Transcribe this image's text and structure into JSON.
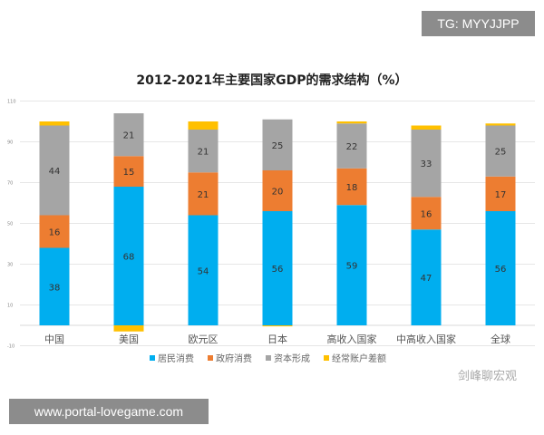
{
  "watermark_top": "TG: MYYJJPP",
  "watermark_bottom": "www.portal-lovegame.com",
  "watermark_wechat": "剑峰聊宏观",
  "chart_data": {
    "type": "bar",
    "stacked": true,
    "title": "2012-2021年主要国家GDP的需求结构（%）",
    "categories": [
      "中国",
      "美国",
      "欧元区",
      "日本",
      "高收入国家",
      "中高收入国家",
      "全球"
    ],
    "series": [
      {
        "name": "居民消费",
        "color": "#00aeef",
        "values": [
          38,
          68,
          54,
          56,
          59,
          47,
          56
        ]
      },
      {
        "name": "政府消费",
        "color": "#ed7d31",
        "values": [
          16,
          15,
          21,
          20,
          18,
          16,
          17
        ]
      },
      {
        "name": "资本形成",
        "color": "#a5a5a5",
        "values": [
          44,
          21,
          21,
          25,
          22,
          33,
          25
        ]
      },
      {
        "name": "经常账户差额",
        "color": "#ffc000",
        "values": [
          2,
          -3,
          4,
          -0.5,
          1,
          2,
          1
        ]
      }
    ],
    "data_labels_series": [
      "居民消费",
      "政府消费",
      "资本形成"
    ],
    "ylim": [
      -10,
      110
    ],
    "yticks": [
      110,
      90,
      70,
      50,
      30,
      10,
      -10
    ],
    "grid": true,
    "legend": "bottom"
  }
}
